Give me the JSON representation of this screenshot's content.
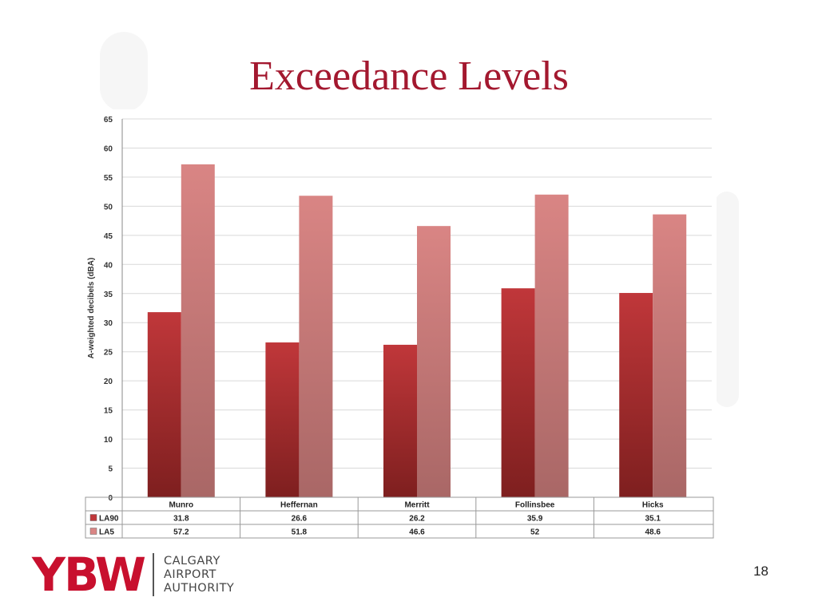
{
  "slide": {
    "title": "Exceedance Levels",
    "page_number": "18"
  },
  "logo": {
    "mark": "YBW",
    "lines": [
      "CALGARY",
      "AIRPORT",
      "AUTHORITY"
    ]
  },
  "colors": {
    "title": "#a3182f",
    "la90_top": "#c0373a",
    "la90_bottom": "#7e1f1f",
    "la5_top": "#d98584",
    "la5_bottom": "#a96766",
    "grid": "#d9d9d9"
  },
  "chart_data": {
    "type": "bar",
    "categories": [
      "Munro",
      "Heffernan",
      "Merritt",
      "Follinsbee",
      "Hicks"
    ],
    "series": [
      {
        "name": "LA90",
        "values": [
          31.8,
          26.6,
          26.2,
          35.9,
          35.1
        ],
        "labels": [
          "31.8",
          "26.6",
          "26.2",
          "35.9",
          "35.1"
        ]
      },
      {
        "name": "LA5",
        "values": [
          57.2,
          51.8,
          46.6,
          52,
          48.6
        ],
        "labels": [
          "57.2",
          "51.8",
          "46.6",
          "52",
          "48.6"
        ]
      }
    ],
    "title": "",
    "xlabel": "",
    "ylabel": "A-weighted decibels (dBA)",
    "ylim": [
      0,
      65
    ],
    "yticks": [
      "0",
      "5",
      "10",
      "15",
      "20",
      "25",
      "30",
      "35",
      "40",
      "45",
      "50",
      "55",
      "60",
      "65"
    ],
    "grid": true,
    "data_table": true
  }
}
